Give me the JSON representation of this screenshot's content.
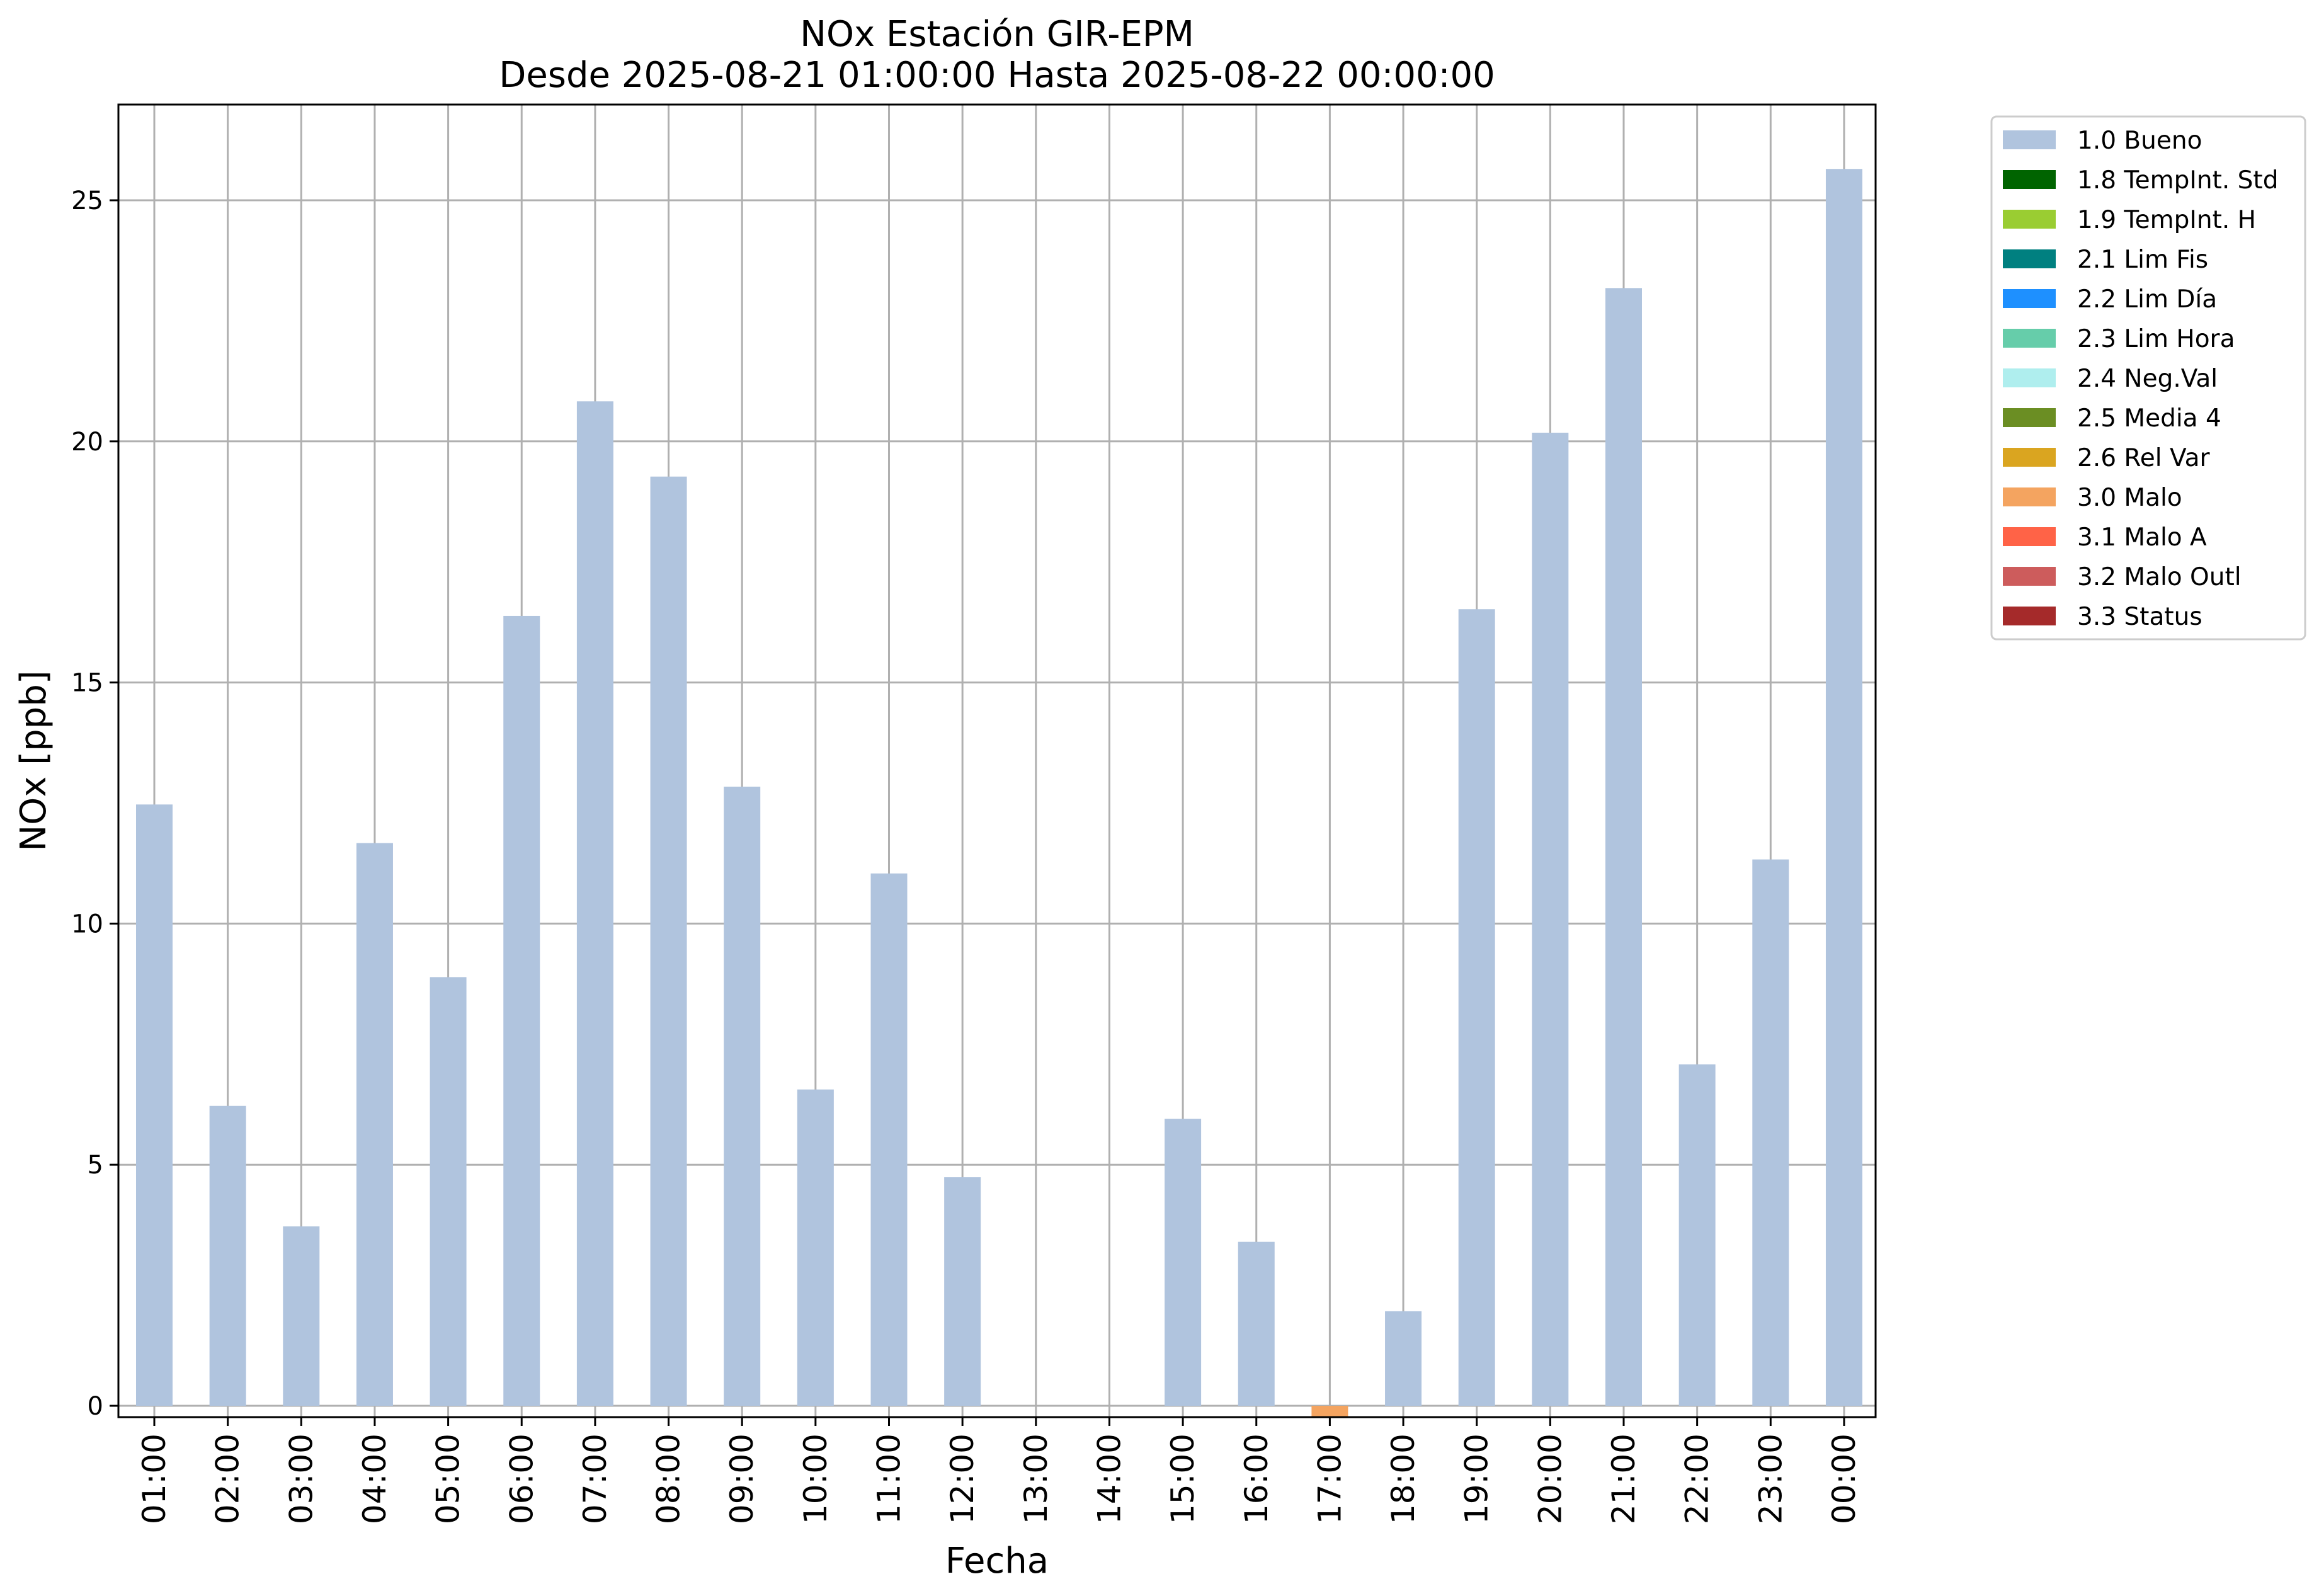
{
  "chart_data": {
    "type": "bar",
    "title": "NOx Estación GIR-EPM",
    "subtitle": "Desde 2025-08-21 01:00:00 Hasta 2025-08-22 00:00:00",
    "xlabel": "Fecha",
    "ylabel": "NOx [ppb]",
    "ylim": [
      -0.25,
      27
    ],
    "yticks": [
      0,
      5,
      10,
      15,
      20,
      25
    ],
    "grid": true,
    "legend_position": "outside-right-top",
    "categories": [
      "01:00",
      "02:00",
      "03:00",
      "04:00",
      "05:00",
      "06:00",
      "07:00",
      "08:00",
      "09:00",
      "10:00",
      "11:00",
      "12:00",
      "13:00",
      "14:00",
      "15:00",
      "16:00",
      "17:00",
      "18:00",
      "19:00",
      "20:00",
      "21:00",
      "22:00",
      "23:00",
      "00:00"
    ],
    "series": [
      {
        "name": "1.0 Bueno",
        "color": "#b0c4de",
        "values": [
          12.47,
          6.22,
          3.72,
          11.67,
          8.89,
          16.38,
          20.83,
          19.27,
          12.84,
          6.56,
          11.04,
          4.74,
          null,
          null,
          5.95,
          3.4,
          null,
          1.96,
          16.52,
          20.18,
          23.18,
          7.08,
          11.33,
          25.65
        ]
      },
      {
        "name": "3.0 Malo",
        "color": "#f4a460",
        "values": [
          null,
          null,
          null,
          null,
          null,
          null,
          null,
          null,
          null,
          null,
          null,
          null,
          null,
          null,
          null,
          null,
          -0.25,
          null,
          null,
          null,
          null,
          null,
          null,
          null
        ]
      }
    ],
    "legend": [
      {
        "label": "1.0 Bueno",
        "color": "#b0c4de"
      },
      {
        "label": "1.8 TempInt. Std",
        "color": "#006400"
      },
      {
        "label": "1.9 TempInt. H",
        "color": "#9acd32"
      },
      {
        "label": "2.1 Lim Fis",
        "color": "#008080"
      },
      {
        "label": "2.2 Lim Día",
        "color": "#1e90ff"
      },
      {
        "label": "2.3 Lim Hora",
        "color": "#66cdaa"
      },
      {
        "label": "2.4 Neg.Val",
        "color": "#afeeee"
      },
      {
        "label": "2.5 Media 4",
        "color": "#6b8e23"
      },
      {
        "label": "2.6 Rel Var",
        "color": "#daa520"
      },
      {
        "label": "3.0 Malo",
        "color": "#f4a460"
      },
      {
        "label": "3.1 Malo A",
        "color": "#ff6347"
      },
      {
        "label": "3.2 Malo Outl",
        "color": "#cd5c5c"
      },
      {
        "label": "3.3 Status",
        "color": "#a52a2a"
      }
    ]
  }
}
